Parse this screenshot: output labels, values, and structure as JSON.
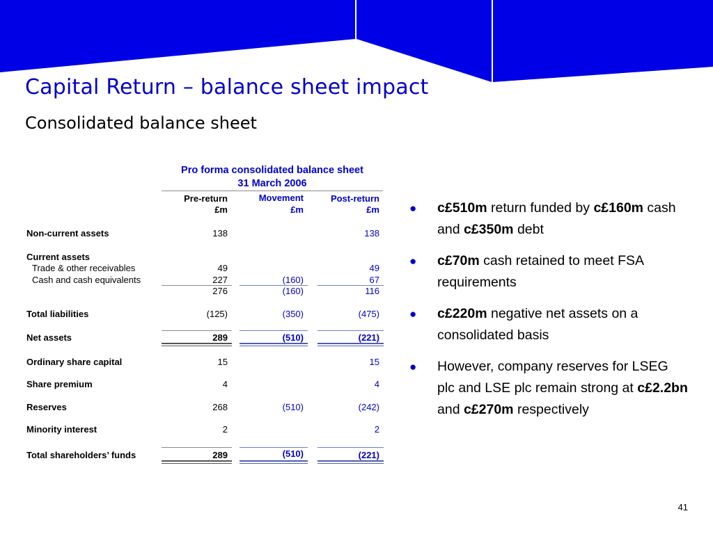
{
  "slide": {
    "title": "Capital Return – balance sheet impact",
    "subtitle": "Consolidated balance sheet",
    "page_number": "41"
  },
  "table": {
    "heading_line1": "Pro forma consolidated balance sheet",
    "heading_line2": "31 March 2006",
    "columns": [
      {
        "label": "Pre-return",
        "unit": "£m"
      },
      {
        "label": "Movement",
        "unit": "£m"
      },
      {
        "label": "Post-return",
        "unit": "£m"
      }
    ],
    "rows": {
      "non_current_assets": {
        "label": "Non-current assets",
        "pre": "138",
        "move": "",
        "post": "138"
      },
      "current_assets": {
        "label": "Current assets"
      },
      "trade_receivables": {
        "label": "Trade & other receivables",
        "pre": "49",
        "move": "",
        "post": "49"
      },
      "cash": {
        "label": "Cash and cash equivalents",
        "pre": "227",
        "move": "(160)",
        "post": "67"
      },
      "current_total": {
        "pre": "276",
        "move": "(160)",
        "post": "116"
      },
      "total_liabilities": {
        "label": "Total liabilities",
        "pre": "(125)",
        "move": "(350)",
        "post": "(475)"
      },
      "net_assets": {
        "label": "Net assets",
        "pre": "289",
        "move": "(510)",
        "post": "(221)"
      },
      "share_capital": {
        "label": "Ordinary share capital",
        "pre": "15",
        "move": "",
        "post": "15"
      },
      "share_premium": {
        "label": "Share premium",
        "pre": "4",
        "move": "",
        "post": "4"
      },
      "reserves": {
        "label": "Reserves",
        "pre": "268",
        "move": "(510)",
        "post": "(242)"
      },
      "minority_interest": {
        "label": "Minority interest",
        "pre": "2",
        "move": "",
        "post": "2"
      },
      "total_funds": {
        "label": "Total shareholders’ funds",
        "pre": "289",
        "move": "(510)",
        "post": "(221)"
      }
    }
  },
  "bullets": [
    {
      "parts": [
        {
          "text": "c£510m",
          "bold": true
        },
        {
          "text": " return funded by "
        },
        {
          "text": "c£160m",
          "bold": true
        },
        {
          "text": " cash and "
        },
        {
          "text": "c£350m",
          "bold": true
        },
        {
          "text": " debt"
        }
      ]
    },
    {
      "parts": [
        {
          "text": "c£70m",
          "bold": true
        },
        {
          "text": " cash retained to meet FSA requirements"
        }
      ]
    },
    {
      "parts": [
        {
          "text": "c£220m",
          "bold": true
        },
        {
          "text": " negative net assets on a consolidated basis"
        }
      ]
    },
    {
      "parts": [
        {
          "text": "However, company reserves for LSEG plc and LSE plc remain strong at "
        },
        {
          "text": "c£2.2bn",
          "bold": true
        },
        {
          "text": " and "
        },
        {
          "text": "c£270m",
          "bold": true
        },
        {
          "text": " respectively"
        }
      ]
    }
  ],
  "colors": {
    "brand_blue": "#0000cc",
    "banner_blue": "#0000e6",
    "rule_grey": "#8a8a8a",
    "rule_blue": "#6f7fc0"
  }
}
